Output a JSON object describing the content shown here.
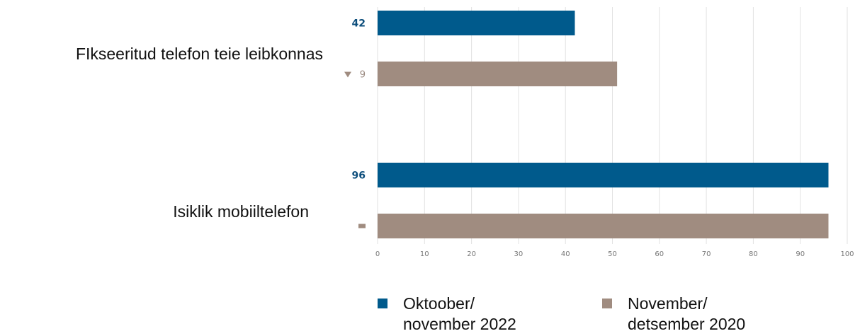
{
  "chart_data": {
    "type": "bar",
    "orientation": "horizontal",
    "categories": [
      "FIkseeritud telefon teie leibkonnas",
      "Isiklik mobiiltelefon"
    ],
    "series": [
      {
        "name": "Oktoober/ november 2022",
        "values": [
          42,
          96
        ],
        "value_labels": [
          "42",
          "96"
        ],
        "color": "#005a8c"
      },
      {
        "name": "November/ detsember 2020",
        "values": [
          51,
          96
        ],
        "value_labels": [
          "9",
          ""
        ],
        "change_markers": [
          "down-triangle",
          "dash"
        ],
        "color": "#a08c80"
      }
    ],
    "xlim": [
      0,
      100
    ],
    "x_ticks": [
      0,
      10,
      20,
      30,
      40,
      50,
      60,
      70,
      80,
      90,
      100
    ],
    "grid": true,
    "legend_position": "bottom"
  },
  "legend": {
    "item1": {
      "line1": "Oktoober/",
      "line2": "november 2022",
      "color": "#005a8c"
    },
    "item2": {
      "line1": "November/",
      "line2": "detsember 2020",
      "color": "#a08c80"
    }
  }
}
